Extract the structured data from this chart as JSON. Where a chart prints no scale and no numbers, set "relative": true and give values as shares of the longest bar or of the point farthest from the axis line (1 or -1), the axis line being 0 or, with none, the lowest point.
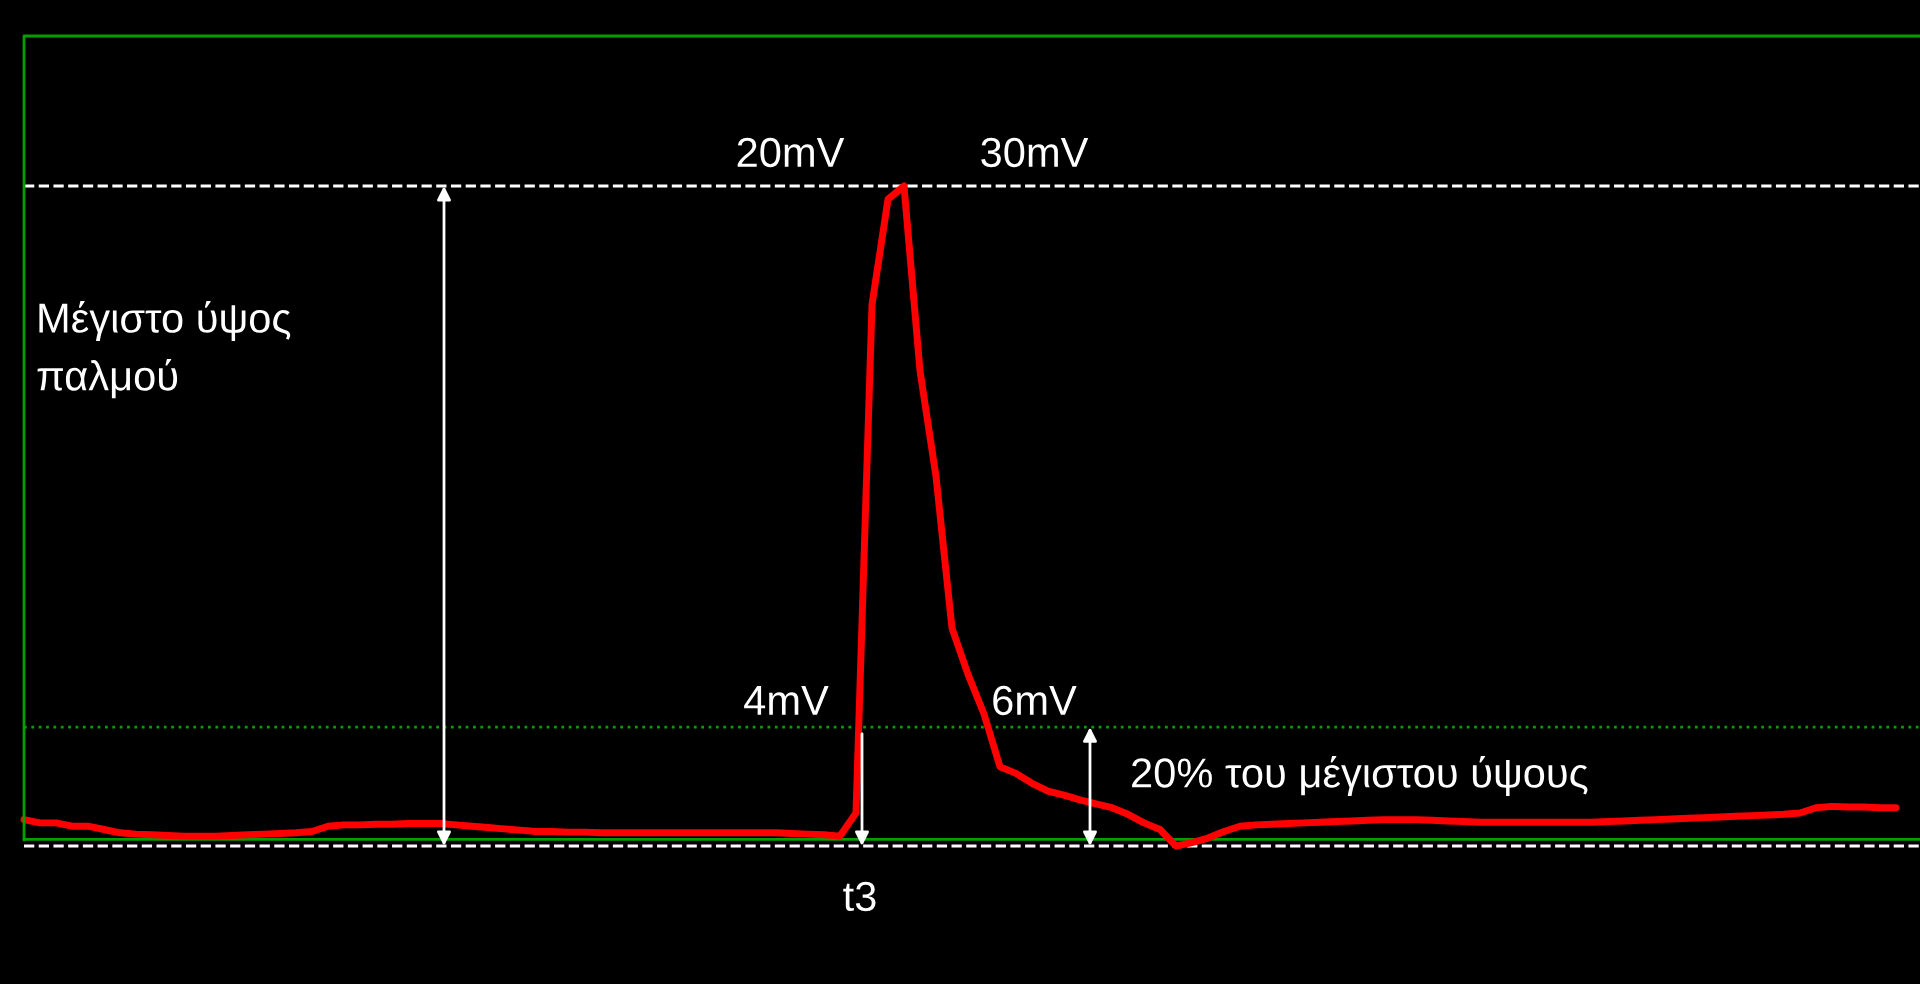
{
  "chart_data": {
    "type": "line",
    "relative": true,
    "marker": "none",
    "line_style": "solid",
    "categories": [
      null,
      null,
      null,
      null,
      null,
      null,
      null,
      null,
      null,
      null,
      null,
      null,
      null,
      null,
      null,
      null,
      null,
      null,
      null,
      null,
      null,
      null,
      null,
      null,
      null,
      null,
      null,
      null,
      null,
      null,
      null,
      null,
      null,
      null,
      null,
      null,
      null,
      null,
      null,
      null,
      null,
      null,
      null,
      null,
      null,
      null,
      null,
      null,
      null,
      null,
      null,
      null,
      null,
      null,
      null,
      null,
      null,
      null,
      null,
      null,
      null,
      null,
      null,
      null,
      null,
      null,
      null,
      null,
      null,
      null,
      null,
      null,
      null,
      null,
      null,
      null,
      null,
      null,
      null,
      null,
      null,
      null,
      null,
      null,
      null,
      null,
      null,
      null,
      null,
      null,
      null,
      null,
      null,
      null,
      null,
      null,
      null,
      null,
      null,
      null,
      null,
      null,
      null,
      null,
      null,
      null,
      null,
      null,
      null,
      null,
      null,
      null,
      null,
      null,
      null,
      null,
      null,
      null
    ],
    "series": [
      {
        "color": "#ff0000",
        "values": [
          0.04,
          0.035,
          0.035,
          0.03,
          0.03,
          0.025,
          0.02,
          0.018,
          0.017,
          0.016,
          0.015,
          0.015,
          0.015,
          0.016,
          0.017,
          0.018,
          0.019,
          0.02,
          0.022,
          0.03,
          0.032,
          0.032,
          0.033,
          0.033,
          0.034,
          0.034,
          0.034,
          0.032,
          0.03,
          0.028,
          0.026,
          0.024,
          0.022,
          0.022,
          0.021,
          0.021,
          0.02,
          0.02,
          0.02,
          0.02,
          0.02,
          0.02,
          0.02,
          0.02,
          0.02,
          0.02,
          0.02,
          0.02,
          0.019,
          0.018,
          0.017,
          0.015,
          0.05,
          0.82,
          0.98,
          1.0,
          0.72,
          0.56,
          0.33,
          0.26,
          0.2,
          0.12,
          0.11,
          0.095,
          0.083,
          0.077,
          0.07,
          0.064,
          0.058,
          0.048,
          0.035,
          0.025,
          0.0,
          0.005,
          0.012,
          0.022,
          0.03,
          0.032,
          0.033,
          0.034,
          0.035,
          0.036,
          0.037,
          0.038,
          0.039,
          0.04,
          0.04,
          0.04,
          0.039,
          0.038,
          0.037,
          0.036,
          0.036,
          0.036,
          0.036,
          0.036,
          0.036,
          0.036,
          0.036,
          0.037,
          0.038,
          0.039,
          0.04,
          0.041,
          0.042,
          0.043,
          0.044,
          0.045,
          0.046,
          0.047,
          0.048,
          0.05,
          0.058,
          0.06,
          0.059,
          0.059,
          0.058,
          0.058
        ]
      }
    ],
    "ref_lines": [
      {
        "axis": "y",
        "value": 1.0,
        "color": "#ffffff",
        "line_style": "dashed"
      },
      {
        "axis": "y",
        "value": 0.0,
        "color": "#ffffff",
        "line_style": "dashed"
      },
      {
        "axis": "y",
        "value": 0.18,
        "color": "#00a000",
        "line_style": "dotted"
      },
      {
        "axis": "y",
        "value": 0.01,
        "color": "#00a000",
        "line_style": "solid"
      }
    ],
    "annotations": [
      "20mV",
      "30mV",
      "Μέγιστο ύψος\nπαλμού",
      "4mV",
      "6mV",
      "20% του μέγιστου ύψους",
      "t3"
    ]
  }
}
